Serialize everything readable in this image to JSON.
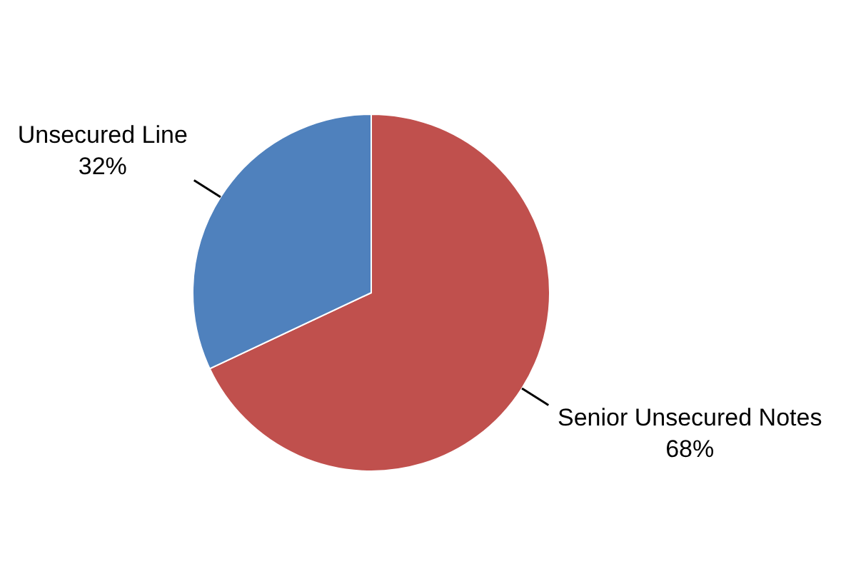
{
  "chart_data": {
    "type": "pie",
    "categories": [
      "Senior Unsecured Notes",
      "Unsecured Line"
    ],
    "values": [
      68,
      32
    ],
    "colors": [
      "#c0504d",
      "#4f81bd"
    ],
    "value_labels": [
      "68%",
      "32%"
    ]
  }
}
